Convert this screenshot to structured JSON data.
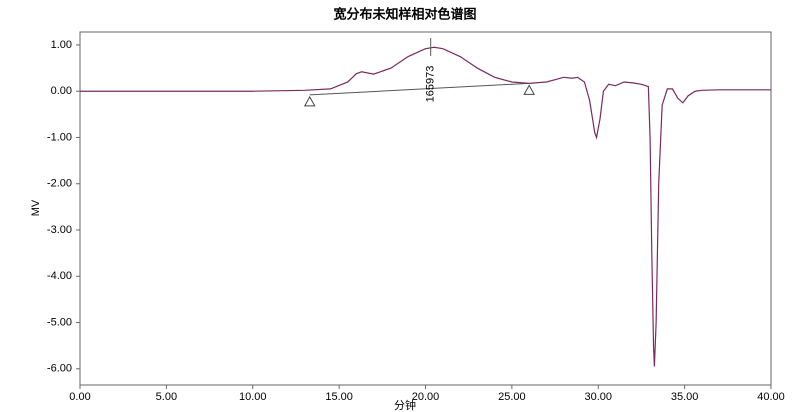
{
  "chart_data": {
    "type": "line",
    "title": "宽分布未知样相对色谱图",
    "xlabel": "分钟",
    "ylabel": "MV",
    "xlim": [
      0,
      40
    ],
    "ylim": [
      -6.35,
      1.28
    ],
    "xticks": [
      {
        "value": 0,
        "label": "0.00"
      },
      {
        "value": 5,
        "label": "5.00"
      },
      {
        "value": 10,
        "label": "10.00"
      },
      {
        "value": 15,
        "label": "15.00"
      },
      {
        "value": 20,
        "label": "20.00"
      },
      {
        "value": 25,
        "label": "25.00"
      },
      {
        "value": 30,
        "label": "30.00"
      },
      {
        "value": 35,
        "label": "35.00"
      },
      {
        "value": 40,
        "label": "40.00"
      }
    ],
    "yticks": [
      {
        "value": 1,
        "label": "1.00"
      },
      {
        "value": 0,
        "label": "0.00"
      },
      {
        "value": -1,
        "label": "-1.00"
      },
      {
        "value": -2,
        "label": "-2.00"
      },
      {
        "value": -3,
        "label": "-3.00"
      },
      {
        "value": -4,
        "label": "-4.00"
      },
      {
        "value": -5,
        "label": "-5.00"
      },
      {
        "value": -6,
        "label": "-6.00"
      }
    ],
    "series": [
      {
        "color": "#7a2a5e",
        "x": [
          0,
          10,
          13,
          14.5,
          15.5,
          16,
          16.3,
          17,
          18,
          19,
          20,
          20.5,
          21,
          22,
          23,
          24,
          25,
          26,
          27,
          27.5,
          28,
          28.5,
          28.8,
          29.2,
          29.5,
          29.8,
          29.9,
          30.1,
          30.3,
          30.6,
          31,
          31.5,
          32,
          32.5,
          32.9,
          33.0,
          33.1,
          33.2,
          33.25,
          33.35,
          33.5,
          33.7,
          34,
          34.3,
          34.6,
          34.9,
          35.2,
          35.6,
          36,
          37,
          40
        ],
        "values": [
          0.0,
          0.0,
          0.02,
          0.05,
          0.2,
          0.38,
          0.42,
          0.37,
          0.5,
          0.75,
          0.92,
          0.95,
          0.92,
          0.75,
          0.5,
          0.3,
          0.2,
          0.17,
          0.2,
          0.25,
          0.3,
          0.28,
          0.3,
          0.2,
          -0.2,
          -0.9,
          -1.0,
          -0.6,
          0.0,
          0.15,
          0.12,
          0.2,
          0.18,
          0.15,
          0.1,
          -1.0,
          -3.5,
          -5.5,
          -5.95,
          -5.0,
          -2.0,
          -0.3,
          0.05,
          0.05,
          -0.15,
          -0.25,
          -0.1,
          0.0,
          0.02,
          0.03,
          0.03
        ]
      }
    ],
    "baseline": {
      "x": [
        13.3,
        26.0
      ],
      "values": [
        -0.08,
        0.17
      ]
    },
    "peak_label": {
      "text": "165973",
      "x": 20.3
    }
  }
}
